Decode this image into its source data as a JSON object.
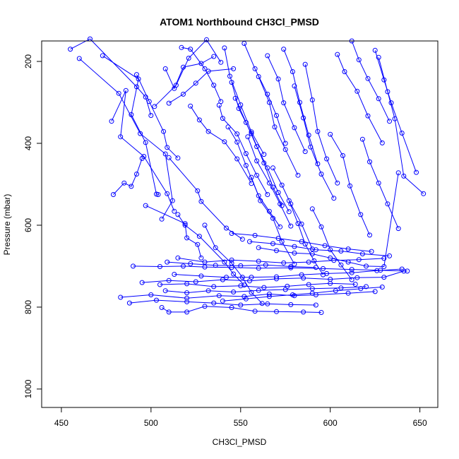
{
  "chart_data": {
    "type": "scatter",
    "title": "ATOM1 Northbound CH3Cl_PMSD",
    "xlabel": "CH3Cl_PMSD",
    "ylabel": "Pressure (mbar)",
    "xlim": [
      439,
      660
    ],
    "ylim": [
      1045,
      150
    ],
    "y_reversed": true,
    "xticks": [
      450,
      500,
      550,
      600,
      650
    ],
    "yticks": [
      200,
      400,
      600,
      800,
      1000
    ],
    "grid": false,
    "legend": "none",
    "style": {
      "color": "#0000ff",
      "marker": "open-circle",
      "lines": true
    },
    "series": [
      {
        "x": [
          455,
          466,
          492,
          497,
          500
        ],
        "y": [
          170,
          145,
          262,
          287,
          332
        ]
      },
      {
        "x": [
          460,
          482,
          494,
          508,
          512,
          506
        ],
        "y": [
          193,
          278,
          376,
          426,
          540,
          585
        ]
      },
      {
        "x": [
          473,
          493,
          489,
          497,
          503,
          504
        ],
        "y": [
          186,
          243,
          330,
          398,
          524,
          525
        ]
      },
      {
        "x": [
          478,
          486,
          483,
          496,
          509,
          513
        ],
        "y": [
          346,
          271,
          384,
          432,
          523,
          566
        ]
      },
      {
        "x": [
          479,
          485,
          489,
          492,
          495
        ],
        "y": [
          525,
          497,
          505,
          475,
          437
        ]
      },
      {
        "x": [
          492,
          499,
          507,
          509,
          515
        ],
        "y": [
          232,
          298,
          371,
          410,
          436
        ]
      },
      {
        "x": [
          497,
          519,
          520,
          526,
          528
        ],
        "y": [
          552,
          596,
          631,
          647,
          680
        ]
      },
      {
        "x": [
          502,
          514,
          521,
          531,
          539
        ],
        "y": [
          310,
          258,
          192,
          147,
          202
        ]
      },
      {
        "x": [
          508,
          513,
          518,
          528,
          535
        ],
        "y": [
          218,
          266,
          214,
          205,
          188
        ]
      },
      {
        "x": [
          510,
          518,
          525,
          532,
          546
        ],
        "y": [
          302,
          280,
          253,
          224,
          218
        ]
      },
      {
        "x": [
          510,
          526,
          528,
          542,
          551
        ],
        "y": [
          435,
          516,
          542,
          607,
          634
        ]
      },
      {
        "x": [
          515,
          519,
          527,
          541,
          546,
          552
        ],
        "y": [
          574,
          600,
          627,
          690,
          719,
          746
        ]
      },
      {
        "x": [
          517,
          522,
          530,
          535,
          539
        ],
        "y": [
          166,
          170,
          218,
          258,
          298
        ]
      },
      {
        "x": [
          522,
          527,
          532,
          541,
          548,
          556
        ],
        "y": [
          309,
          343,
          371,
          396,
          438,
          498
        ]
      },
      {
        "x": [
          530,
          536,
          545,
          551,
          556,
          562
        ],
        "y": [
          600,
          655,
          693,
          727,
          764,
          791
        ]
      },
      {
        "x": [
          538,
          540,
          548,
          553,
          559,
          565
        ],
        "y": [
          307,
          339,
          377,
          425,
          478,
          525
        ]
      },
      {
        "x": [
          541,
          544,
          550,
          556,
          563
        ],
        "y": [
          167,
          236,
          306,
          372,
          427
        ]
      },
      {
        "x": [
          543,
          548,
          553,
          560,
          566,
          572
        ],
        "y": [
          360,
          397,
          454,
          528,
          566,
          604
        ]
      },
      {
        "x": [
          545,
          549,
          556,
          563,
          568,
          573
        ],
        "y": [
          251,
          315,
          376,
          448,
          507,
          552
        ]
      },
      {
        "x": [
          547,
          553,
          559,
          565,
          571,
          577
        ],
        "y": [
          290,
          349,
          408,
          460,
          520,
          567
        ]
      },
      {
        "x": [
          552,
          558,
          565,
          570,
          575
        ],
        "y": [
          156,
          218,
          280,
          332,
          400
        ]
      },
      {
        "x": [
          554,
          559,
          566,
          572,
          578
        ],
        "y": [
          384,
          443,
          497,
          548,
          602
        ]
      },
      {
        "x": [
          556,
          561,
          568,
          573,
          580
        ],
        "y": [
          483,
          540,
          583,
          640,
          695
        ]
      },
      {
        "x": [
          560,
          566,
          569,
          575,
          582
        ],
        "y": [
          237,
          300,
          360,
          415,
          478
        ]
      },
      {
        "x": [
          565,
          571,
          574,
          580,
          586
        ],
        "y": [
          186,
          243,
          301,
          362,
          420
        ]
      },
      {
        "x": [
          568,
          573,
          578,
          584,
          590
        ],
        "y": [
          460,
          502,
          548,
          597,
          658
        ]
      },
      {
        "x": [
          574,
          579,
          583,
          588,
          593
        ],
        "y": [
          170,
          225,
          300,
          380,
          450
        ]
      },
      {
        "x": [
          577,
          582,
          586,
          591,
          596
        ],
        "y": [
          540,
          596,
          646,
          687,
          721
        ]
      },
      {
        "x": [
          580,
          585,
          589,
          595,
          602
        ],
        "y": [
          260,
          338,
          409,
          475,
          534
        ]
      },
      {
        "x": [
          586,
          590,
          593,
          598,
          604
        ],
        "y": [
          207,
          294,
          371,
          438,
          497
        ]
      },
      {
        "x": [
          590,
          595,
          600,
          606,
          612
        ],
        "y": [
          560,
          604,
          660,
          697,
          733
        ]
      },
      {
        "x": [
          600,
          607,
          611,
          617,
          622
        ],
        "y": [
          378,
          430,
          504,
          574,
          624
        ]
      },
      {
        "x": [
          604,
          608,
          615,
          621,
          629
        ],
        "y": [
          183,
          225,
          273,
          333,
          399
        ]
      },
      {
        "x": [
          612,
          616,
          621,
          627,
          633
        ],
        "y": [
          150,
          196,
          242,
          291,
          346
        ]
      },
      {
        "x": [
          618,
          622,
          627,
          632,
          638
        ],
        "y": [
          390,
          445,
          497,
          548,
          608
        ]
      },
      {
        "x": [
          625,
          630,
          634,
          640,
          648
        ],
        "y": [
          173,
          245,
          301,
          375,
          471
        ]
      },
      {
        "x": [
          627,
          632,
          636,
          641,
          652
        ],
        "y": [
          190,
          274,
          340,
          480,
          523
        ]
      },
      {
        "x": [
          490,
          505,
          518,
          530,
          545,
          560,
          578,
          596,
          612,
          628,
          643
        ],
        "y": [
          700,
          701,
          700,
          702,
          703,
          705,
          704,
          706,
          708,
          710,
          712
        ]
      },
      {
        "x": [
          495,
          510,
          525,
          540,
          555,
          570,
          585,
          600,
          615,
          630,
          641
        ],
        "y": [
          740,
          735,
          738,
          733,
          736,
          731,
          729,
          732,
          728,
          727,
          712
        ]
      },
      {
        "x": [
          483,
          500,
          520,
          538,
          552,
          566,
          580,
          592,
          610,
          625
        ],
        "y": [
          776,
          770,
          778,
          772,
          774,
          768,
          772,
          770,
          766,
          762
        ]
      },
      {
        "x": [
          488,
          503,
          520,
          535,
          550,
          565,
          578,
          592
        ],
        "y": [
          790,
          783,
          787,
          790,
          795,
          792,
          794,
          795
        ]
      },
      {
        "x": [
          506,
          510,
          520,
          530,
          545,
          558,
          570,
          585,
          595
        ],
        "y": [
          801,
          812,
          812,
          798,
          801,
          810,
          811,
          812,
          813
        ]
      },
      {
        "x": [
          508,
          520,
          532,
          546,
          560,
          575,
          590,
          606,
          620
        ],
        "y": [
          760,
          765,
          760,
          763,
          759,
          757,
          755,
          753,
          750
        ]
      },
      {
        "x": [
          513,
          528,
          542,
          556,
          570,
          584,
          598,
          612,
          626,
          640
        ],
        "y": [
          720,
          724,
          727,
          727,
          726,
          721,
          718,
          716,
          711,
          707
        ]
      },
      {
        "x": [
          505,
          520,
          535,
          550,
          563,
          576,
          588,
          600,
          614
        ],
        "y": [
          745,
          743,
          750,
          748,
          752,
          749,
          745,
          742,
          744
        ]
      },
      {
        "x": [
          515,
          530,
          545,
          560,
          574,
          588,
          602,
          616,
          630
        ],
        "y": [
          680,
          690,
          685,
          688,
          692,
          690,
          686,
          684,
          681
        ]
      },
      {
        "x": [
          540,
          553,
          566,
          579,
          590,
          603,
          617,
          629
        ],
        "y": [
          785,
          780,
          774,
          770,
          766,
          760,
          755,
          751
        ]
      },
      {
        "x": [
          509,
          522,
          536,
          550,
          564,
          578,
          592
        ],
        "y": [
          690,
          694,
          698,
          699,
          697,
          701,
          703
        ]
      },
      {
        "x": [
          560,
          570,
          580,
          590,
          600,
          610,
          620,
          630,
          638
        ],
        "y": [
          655,
          662,
          668,
          670,
          680,
          690,
          700,
          701,
          472
        ]
      },
      {
        "x": [
          555,
          568,
          580,
          592,
          606,
          618,
          633
        ],
        "y": [
          640,
          645,
          652,
          660,
          663,
          670,
          675
        ]
      },
      {
        "x": [
          545,
          558,
          571,
          584,
          597,
          610,
          623
        ],
        "y": [
          620,
          625,
          632,
          640,
          650,
          658,
          664
        ]
      }
    ]
  }
}
